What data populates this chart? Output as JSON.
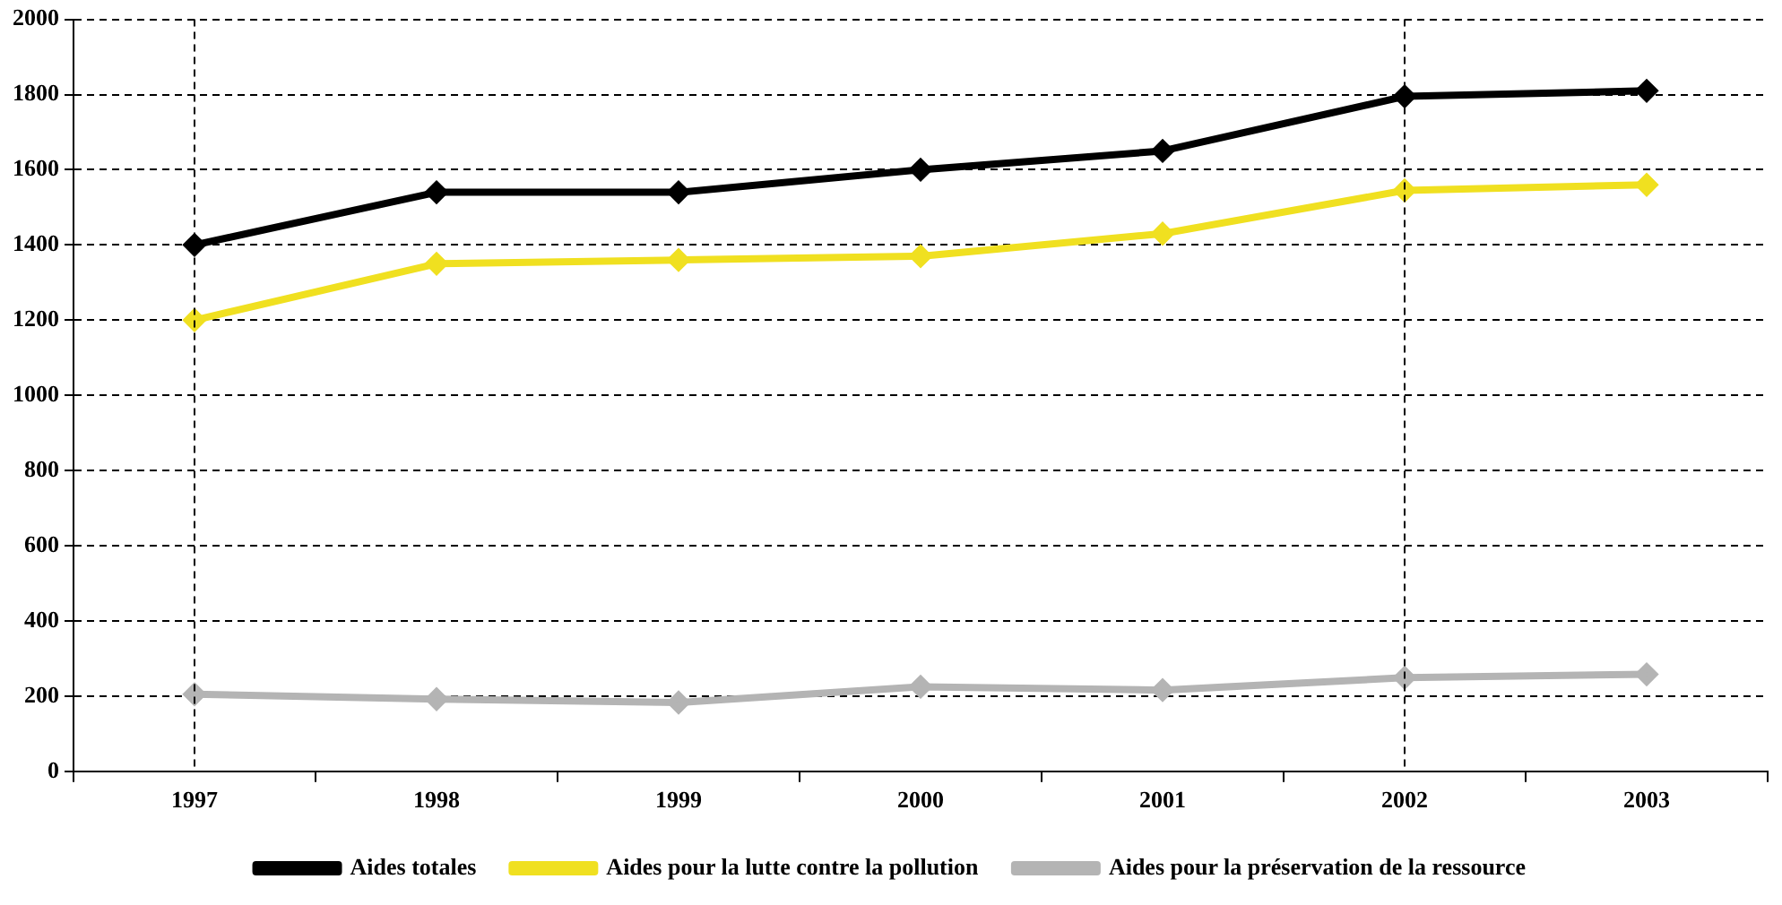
{
  "chart_data": {
    "type": "line",
    "categories": [
      "1997",
      "1998",
      "1999",
      "2000",
      "2001",
      "2002",
      "2003"
    ],
    "series": [
      {
        "name": "Aides totales",
        "color": "#000000",
        "values": [
          1400,
          1540,
          1540,
          1600,
          1650,
          1795,
          1810
        ]
      },
      {
        "name": "Aides pour la lutte contre la pollution",
        "color": "#f0e020",
        "values": [
          1200,
          1350,
          1360,
          1370,
          1430,
          1545,
          1560
        ]
      },
      {
        "name": "Aides pour la préservation de la ressource",
        "color": "#b4b4b4",
        "values": [
          205,
          192,
          183,
          225,
          216,
          249,
          258
        ]
      }
    ],
    "ylim": [
      0,
      2000
    ],
    "yticks": [
      0,
      200,
      400,
      600,
      800,
      1000,
      1200,
      1400,
      1600,
      1800,
      2000
    ],
    "grid": "y",
    "legend": "bottom",
    "marker": "diamond",
    "line_style": "solid",
    "ref_lines": [
      {
        "axis": "x",
        "value": "1997",
        "line_style": "dashed",
        "color": "#000000"
      },
      {
        "axis": "x",
        "value": "2002",
        "line_style": "dashed",
        "color": "#000000"
      }
    ]
  }
}
